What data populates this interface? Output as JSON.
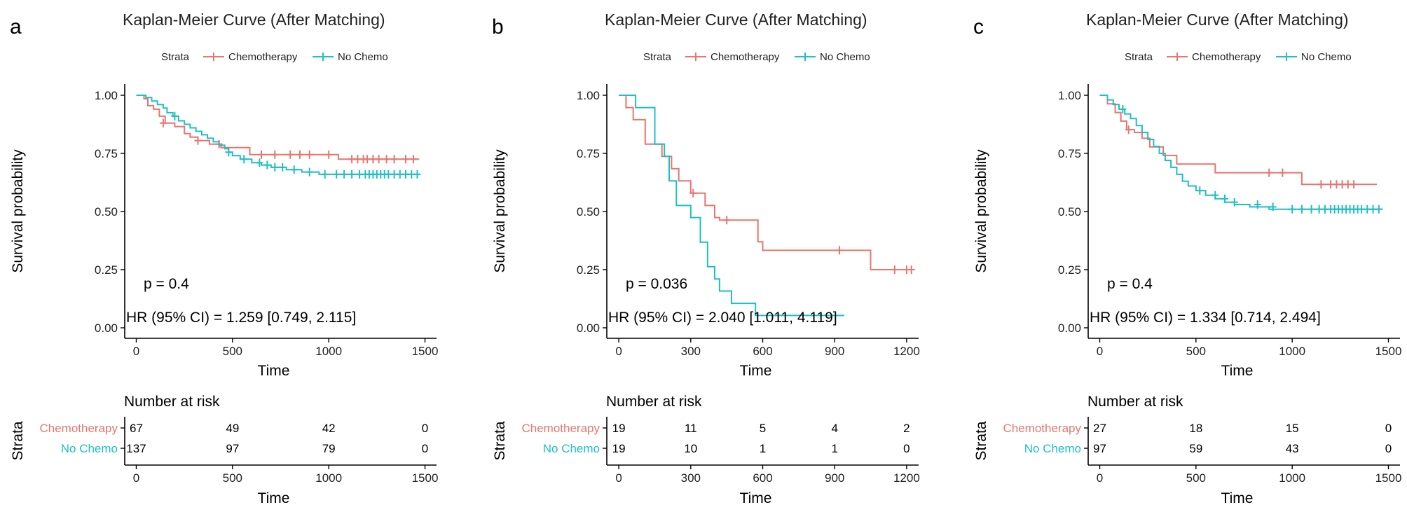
{
  "colors": {
    "chemo": "#E7766F",
    "nochemo": "#1FBFC4",
    "axis": "#000000",
    "text": "#222222"
  },
  "chart_data": [
    {
      "type": "line",
      "panel_label": "a",
      "title": "Kaplan-Meier Curve (After Matching)",
      "legend_title": "Strata",
      "legend_position": "top",
      "xlabel": "Time",
      "ylabel": "Survival probability",
      "xlim": [
        -60,
        1560
      ],
      "ylim": [
        0,
        1
      ],
      "xticks": [
        0,
        500,
        1000,
        1500
      ],
      "xtick_labels": [
        "0",
        "500",
        "1000",
        "1500"
      ],
      "yticks": [
        0,
        0.25,
        0.5,
        0.75,
        1
      ],
      "ytick_labels": [
        "0.00",
        "0.25",
        "0.50",
        "0.75",
        "1.00"
      ],
      "p_value_text": "p = 0.4",
      "hr_text": "HR (95% CI) = 1.259 [0.749, 2.115]",
      "series": [
        {
          "name": "Chemotherapy",
          "color_key": "chemo",
          "steps": [
            [
              0,
              1.0
            ],
            [
              40,
              0.985
            ],
            [
              60,
              0.955
            ],
            [
              90,
              0.94
            ],
            [
              120,
              0.91
            ],
            [
              150,
              0.88
            ],
            [
              200,
              0.865
            ],
            [
              250,
              0.835
            ],
            [
              280,
              0.82
            ],
            [
              320,
              0.805
            ],
            [
              380,
              0.79
            ],
            [
              440,
              0.775
            ],
            [
              590,
              0.745
            ],
            [
              1050,
              0.725
            ],
            [
              1470,
              0.725
            ]
          ],
          "censored": [
            [
              140,
              0.88
            ],
            [
              320,
              0.805
            ],
            [
              430,
              0.79
            ],
            [
              650,
              0.745
            ],
            [
              720,
              0.745
            ],
            [
              800,
              0.745
            ],
            [
              850,
              0.745
            ],
            [
              900,
              0.745
            ],
            [
              1000,
              0.745
            ],
            [
              1120,
              0.725
            ],
            [
              1150,
              0.725
            ],
            [
              1180,
              0.725
            ],
            [
              1200,
              0.725
            ],
            [
              1230,
              0.725
            ],
            [
              1260,
              0.725
            ],
            [
              1300,
              0.725
            ],
            [
              1340,
              0.725
            ],
            [
              1400,
              0.725
            ],
            [
              1440,
              0.725
            ]
          ]
        },
        {
          "name": "No Chemo",
          "color_key": "nochemo",
          "steps": [
            [
              0,
              1.0
            ],
            [
              50,
              0.99
            ],
            [
              80,
              0.975
            ],
            [
              110,
              0.96
            ],
            [
              140,
              0.945
            ],
            [
              160,
              0.925
            ],
            [
              190,
              0.91
            ],
            [
              220,
              0.89
            ],
            [
              250,
              0.875
            ],
            [
              280,
              0.86
            ],
            [
              310,
              0.845
            ],
            [
              340,
              0.83
            ],
            [
              370,
              0.815
            ],
            [
              400,
              0.8
            ],
            [
              430,
              0.785
            ],
            [
              460,
              0.77
            ],
            [
              480,
              0.755
            ],
            [
              500,
              0.74
            ],
            [
              540,
              0.725
            ],
            [
              600,
              0.71
            ],
            [
              650,
              0.7
            ],
            [
              700,
              0.69
            ],
            [
              780,
              0.68
            ],
            [
              860,
              0.67
            ],
            [
              950,
              0.66
            ],
            [
              1470,
              0.66
            ]
          ],
          "censored": [
            [
              200,
              0.91
            ],
            [
              480,
              0.755
            ],
            [
              560,
              0.725
            ],
            [
              640,
              0.71
            ],
            [
              680,
              0.7
            ],
            [
              720,
              0.69
            ],
            [
              760,
              0.69
            ],
            [
              820,
              0.68
            ],
            [
              900,
              0.67
            ],
            [
              980,
              0.66
            ],
            [
              1040,
              0.66
            ],
            [
              1080,
              0.66
            ],
            [
              1120,
              0.66
            ],
            [
              1160,
              0.66
            ],
            [
              1190,
              0.66
            ],
            [
              1210,
              0.66
            ],
            [
              1230,
              0.66
            ],
            [
              1250,
              0.66
            ],
            [
              1270,
              0.66
            ],
            [
              1290,
              0.66
            ],
            [
              1310,
              0.66
            ],
            [
              1340,
              0.66
            ],
            [
              1370,
              0.66
            ],
            [
              1400,
              0.66
            ],
            [
              1430,
              0.66
            ],
            [
              1460,
              0.66
            ]
          ]
        }
      ],
      "risk_table": {
        "title": "Number at risk",
        "strata_label": "Strata",
        "xlabel": "Time",
        "times": [
          0,
          500,
          1000,
          1500
        ],
        "time_labels": [
          "0",
          "500",
          "1000",
          "1500"
        ],
        "rows": [
          {
            "name": "Chemotherapy",
            "color_key": "chemo",
            "values": [
              "67",
              "49",
              "42",
              "0"
            ]
          },
          {
            "name": "No Chemo",
            "color_key": "nochemo",
            "values": [
              "137",
              "97",
              "79",
              "0"
            ]
          }
        ]
      }
    },
    {
      "type": "line",
      "panel_label": "b",
      "title": "Kaplan-Meier Curve (After Matching)",
      "legend_title": "Strata",
      "legend_position": "top",
      "xlabel": "Time",
      "ylabel": "Survival probability",
      "xlim": [
        -50,
        1250
      ],
      "ylim": [
        0,
        1
      ],
      "xticks": [
        0,
        300,
        600,
        900,
        1200
      ],
      "xtick_labels": [
        "0",
        "300",
        "600",
        "900",
        "1200"
      ],
      "yticks": [
        0,
        0.25,
        0.5,
        0.75,
        1
      ],
      "ytick_labels": [
        "0.00",
        "0.25",
        "0.50",
        "0.75",
        "1.00"
      ],
      "p_value_text": "p = 0.036",
      "hr_text": "HR (95% CI) = 2.040 [1.011, 4.119]",
      "series": [
        {
          "name": "Chemotherapy",
          "color_key": "chemo",
          "steps": [
            [
              0,
              1.0
            ],
            [
              30,
              0.947
            ],
            [
              60,
              0.895
            ],
            [
              110,
              0.79
            ],
            [
              180,
              0.737
            ],
            [
              220,
              0.684
            ],
            [
              250,
              0.632
            ],
            [
              300,
              0.579
            ],
            [
              360,
              0.526
            ],
            [
              400,
              0.474
            ],
            [
              420,
              0.463
            ],
            [
              580,
              0.37
            ],
            [
              600,
              0.333
            ],
            [
              1050,
              0.25
            ],
            [
              1230,
              0.25
            ]
          ],
          "censored": [
            [
              310,
              0.579
            ],
            [
              450,
              0.463
            ],
            [
              920,
              0.333
            ],
            [
              1150,
              0.25
            ],
            [
              1200,
              0.25
            ],
            [
              1220,
              0.25
            ]
          ]
        },
        {
          "name": "No Chemo",
          "color_key": "nochemo",
          "steps": [
            [
              0,
              1.0
            ],
            [
              70,
              0.947
            ],
            [
              150,
              0.79
            ],
            [
              190,
              0.737
            ],
            [
              210,
              0.632
            ],
            [
              240,
              0.526
            ],
            [
              300,
              0.474
            ],
            [
              340,
              0.368
            ],
            [
              370,
              0.263
            ],
            [
              400,
              0.21
            ],
            [
              420,
              0.158
            ],
            [
              470,
              0.105
            ],
            [
              570,
              0.053
            ],
            [
              940,
              0.053
            ]
          ],
          "censored": []
        }
      ],
      "risk_table": {
        "title": "Number at risk",
        "strata_label": "Strata",
        "xlabel": "Time",
        "times": [
          0,
          300,
          600,
          900,
          1200
        ],
        "time_labels": [
          "0",
          "300",
          "600",
          "900",
          "1200"
        ],
        "rows": [
          {
            "name": "Chemotherapy",
            "color_key": "chemo",
            "values": [
              "19",
              "11",
              "5",
              "4",
              "2"
            ]
          },
          {
            "name": "No Chemo",
            "color_key": "nochemo",
            "values": [
              "19",
              "10",
              "1",
              "1",
              "0"
            ]
          }
        ]
      }
    },
    {
      "type": "line",
      "panel_label": "c",
      "title": "Kaplan-Meier Curve (After Matching)",
      "legend_title": "Strata",
      "legend_position": "top",
      "xlabel": "Time",
      "ylabel": "Survival probability",
      "xlim": [
        -60,
        1560
      ],
      "ylim": [
        0,
        1
      ],
      "xticks": [
        0,
        500,
        1000,
        1500
      ],
      "xtick_labels": [
        "0",
        "500",
        "1000",
        "1500"
      ],
      "yticks": [
        0,
        0.25,
        0.5,
        0.75,
        1
      ],
      "ytick_labels": [
        "0.00",
        "0.25",
        "0.50",
        "0.75",
        "1.00"
      ],
      "p_value_text": "p = 0.4",
      "hr_text": "HR (95% CI) = 1.334 [0.714, 2.494]",
      "series": [
        {
          "name": "Chemotherapy",
          "color_key": "chemo",
          "steps": [
            [
              0,
              1.0
            ],
            [
              40,
              0.963
            ],
            [
              80,
              0.926
            ],
            [
              110,
              0.889
            ],
            [
              140,
              0.852
            ],
            [
              180,
              0.84
            ],
            [
              220,
              0.815
            ],
            [
              260,
              0.778
            ],
            [
              330,
              0.741
            ],
            [
              400,
              0.704
            ],
            [
              600,
              0.667
            ],
            [
              1050,
              0.617
            ],
            [
              1440,
              0.617
            ]
          ],
          "censored": [
            [
              150,
              0.852
            ],
            [
              880,
              0.667
            ],
            [
              950,
              0.667
            ],
            [
              1150,
              0.617
            ],
            [
              1200,
              0.617
            ],
            [
              1230,
              0.617
            ],
            [
              1260,
              0.617
            ],
            [
              1290,
              0.617
            ],
            [
              1320,
              0.617
            ]
          ]
        },
        {
          "name": "No Chemo",
          "color_key": "nochemo",
          "steps": [
            [
              0,
              1.0
            ],
            [
              40,
              0.98
            ],
            [
              70,
              0.96
            ],
            [
              100,
              0.94
            ],
            [
              130,
              0.92
            ],
            [
              160,
              0.9
            ],
            [
              190,
              0.87
            ],
            [
              220,
              0.84
            ],
            [
              250,
              0.81
            ],
            [
              280,
              0.78
            ],
            [
              310,
              0.75
            ],
            [
              340,
              0.72
            ],
            [
              370,
              0.69
            ],
            [
              400,
              0.66
            ],
            [
              430,
              0.63
            ],
            [
              460,
              0.61
            ],
            [
              500,
              0.59
            ],
            [
              550,
              0.57
            ],
            [
              600,
              0.555
            ],
            [
              650,
              0.54
            ],
            [
              700,
              0.53
            ],
            [
              780,
              0.52
            ],
            [
              880,
              0.51
            ],
            [
              1470,
              0.51
            ]
          ],
          "censored": [
            [
              120,
              0.94
            ],
            [
              520,
              0.59
            ],
            [
              600,
              0.57
            ],
            [
              650,
              0.555
            ],
            [
              700,
              0.54
            ],
            [
              820,
              0.53
            ],
            [
              900,
              0.52
            ],
            [
              1000,
              0.51
            ],
            [
              1050,
              0.51
            ],
            [
              1100,
              0.51
            ],
            [
              1140,
              0.51
            ],
            [
              1170,
              0.51
            ],
            [
              1200,
              0.51
            ],
            [
              1220,
              0.51
            ],
            [
              1240,
              0.51
            ],
            [
              1260,
              0.51
            ],
            [
              1280,
              0.51
            ],
            [
              1300,
              0.51
            ],
            [
              1320,
              0.51
            ],
            [
              1340,
              0.51
            ],
            [
              1360,
              0.51
            ],
            [
              1390,
              0.51
            ],
            [
              1420,
              0.51
            ],
            [
              1450,
              0.51
            ]
          ]
        }
      ],
      "risk_table": {
        "title": "Number at risk",
        "strata_label": "Strata",
        "xlabel": "Time",
        "times": [
          0,
          500,
          1000,
          1500
        ],
        "time_labels": [
          "0",
          "500",
          "1000",
          "1500"
        ],
        "rows": [
          {
            "name": "Chemotherapy",
            "color_key": "chemo",
            "values": [
              "27",
              "18",
              "15",
              "0"
            ]
          },
          {
            "name": "No Chemo",
            "color_key": "nochemo",
            "values": [
              "97",
              "59",
              "43",
              "0"
            ]
          }
        ]
      }
    }
  ]
}
